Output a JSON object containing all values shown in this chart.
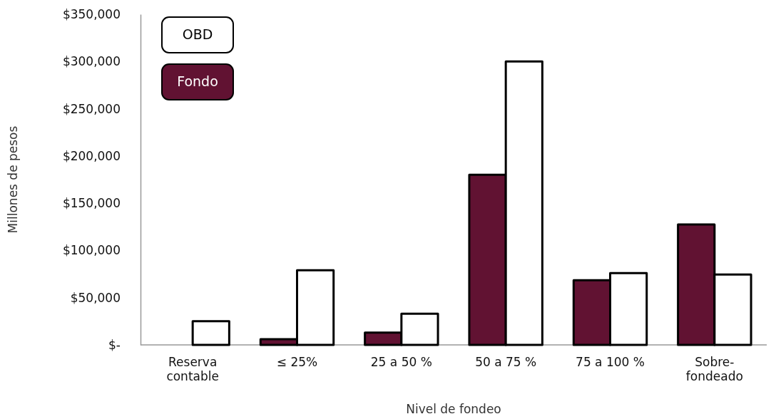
{
  "chart_data": {
    "type": "bar",
    "xlabel": "Nivel de fondeo",
    "ylabel": "Millones de pesos",
    "categories": [
      "Reserva contable",
      "≤ 25%",
      "25 a 50 %",
      "50 a 75 %",
      "75 a 100 %",
      "Sobre-fondeado"
    ],
    "series": [
      {
        "name": "Fondo",
        "color": "#611232",
        "values": [
          null,
          6000,
          13000,
          180000,
          68500,
          127500
        ]
      },
      {
        "name": "OBD",
        "color": "#ffffff",
        "values": [
          25000,
          79000,
          33000,
          300000,
          76000,
          74500
        ]
      }
    ],
    "ylim": [
      0,
      350000
    ],
    "yticks": [
      {
        "value": 0,
        "label": "$-"
      },
      {
        "value": 50000,
        "label": "$50,000"
      },
      {
        "value": 100000,
        "label": "$100,000"
      },
      {
        "value": 150000,
        "label": "$150,000"
      },
      {
        "value": 200000,
        "label": "$200,000"
      },
      {
        "value": 250000,
        "label": "$250,000"
      },
      {
        "value": 300000,
        "label": "$300,000"
      },
      {
        "value": 350000,
        "label": "$350,000"
      }
    ],
    "legend": "top left",
    "grid": false
  }
}
